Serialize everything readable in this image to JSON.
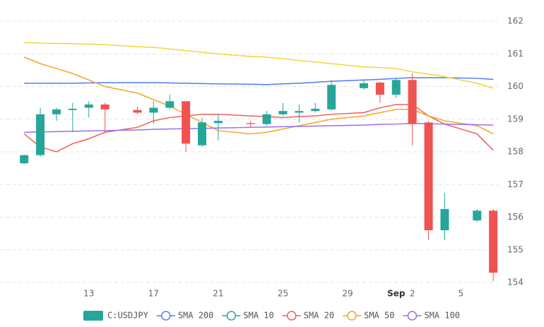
{
  "chart_data": {
    "type": "candlestick",
    "name": "C:USDJPY",
    "up_color": "#26a69a",
    "down_color": "#ef5350",
    "x": [
      9,
      10,
      11,
      12,
      13,
      14,
      16,
      17,
      18,
      19,
      20,
      21,
      23,
      24,
      25,
      26,
      27,
      28,
      30,
      31,
      32,
      33,
      34,
      35,
      37,
      38
    ],
    "open": [
      157.65,
      157.9,
      159.15,
      159.28,
      159.35,
      159.45,
      159.28,
      159.2,
      159.35,
      159.55,
      158.2,
      158.88,
      158.88,
      158.85,
      159.15,
      159.2,
      159.25,
      159.3,
      159.95,
      160.12,
      159.75,
      160.2,
      158.9,
      155.6,
      155.9,
      156.2
    ],
    "high": [
      157.92,
      159.35,
      159.35,
      159.5,
      159.55,
      159.5,
      159.38,
      159.55,
      159.75,
      159.55,
      159.05,
      159.15,
      158.95,
      159.25,
      159.5,
      159.45,
      159.5,
      160.2,
      160.2,
      160.15,
      160.25,
      160.4,
      158.95,
      156.75,
      156.25,
      156.25
    ],
    "low": [
      157.62,
      157.85,
      158.95,
      158.6,
      159.05,
      158.6,
      159.15,
      158.85,
      159.3,
      158.0,
      158.15,
      158.35,
      158.75,
      158.8,
      159.1,
      158.9,
      159.2,
      159.25,
      159.9,
      159.5,
      159.65,
      158.2,
      155.3,
      155.3,
      155.85,
      154.05
    ],
    "close": [
      157.9,
      159.15,
      159.3,
      159.32,
      159.45,
      159.3,
      159.2,
      159.35,
      159.55,
      158.25,
      158.9,
      158.95,
      158.85,
      159.15,
      159.25,
      159.25,
      159.32,
      160.05,
      160.1,
      159.75,
      160.2,
      158.85,
      155.6,
      156.25,
      156.2,
      154.3
    ],
    "series": [
      {
        "name": "SMA 200",
        "color": "#4f7cf5",
        "values": [
          160.1,
          160.1,
          160.1,
          160.1,
          160.11,
          160.12,
          160.12,
          160.12,
          160.11,
          160.1,
          160.09,
          160.08,
          160.07,
          160.06,
          160.08,
          160.1,
          160.13,
          160.16,
          160.2,
          160.22,
          160.25,
          160.27,
          160.27,
          160.27,
          160.25,
          160.22
        ]
      },
      {
        "name": "SMA 10",
        "color": "#26a69a"
      },
      {
        "name": "SMA 20",
        "color": "#f05b5b",
        "values": [
          158.55,
          158.15,
          158.0,
          158.25,
          158.4,
          158.6,
          158.75,
          158.95,
          159.05,
          159.1,
          159.15,
          159.15,
          159.1,
          159.08,
          159.05,
          159.08,
          159.1,
          159.15,
          159.2,
          159.35,
          159.45,
          159.45,
          159.1,
          158.85,
          158.55,
          158.05
        ]
      },
      {
        "name": "SMA 50",
        "color": "#f5a623",
        "values": [
          160.9,
          160.7,
          160.55,
          160.4,
          160.2,
          160.0,
          159.8,
          159.6,
          159.4,
          159.15,
          158.9,
          158.65,
          158.55,
          158.6,
          158.7,
          158.8,
          158.9,
          159.0,
          159.1,
          159.2,
          159.3,
          159.3,
          159.1,
          158.95,
          158.8,
          158.55
        ]
      },
      {
        "name": "SMA 100",
        "color": "#9b6cf0",
        "values": [
          158.6,
          158.61,
          158.62,
          158.63,
          158.64,
          158.65,
          158.67,
          158.69,
          158.7,
          158.71,
          158.72,
          158.73,
          158.75,
          158.76,
          158.77,
          158.78,
          158.79,
          158.8,
          158.82,
          158.84,
          158.85,
          158.87,
          158.86,
          158.85,
          158.83,
          158.82
        ]
      },
      {
        "color": "#f2d43a",
        "values": [
          161.35,
          161.33,
          161.32,
          161.31,
          161.3,
          161.28,
          161.22,
          161.2,
          161.15,
          161.1,
          161.05,
          161.0,
          160.92,
          160.9,
          160.85,
          160.8,
          160.75,
          160.7,
          160.6,
          160.58,
          160.55,
          160.45,
          160.38,
          160.3,
          160.1,
          159.95
        ]
      }
    ],
    "xlim": [
      8.6,
      38.3
    ],
    "xticks": [
      13,
      17,
      21,
      25,
      29,
      {
        "value": 32,
        "label": "Sep"
      },
      {
        "value": 33,
        "label": "2"
      },
      {
        "value": 36,
        "label": "5"
      }
    ],
    "ylim": [
      154,
      162
    ],
    "yticks": [
      154,
      155,
      156,
      157,
      158,
      159,
      160,
      161,
      162
    ],
    "grid": true
  }
}
